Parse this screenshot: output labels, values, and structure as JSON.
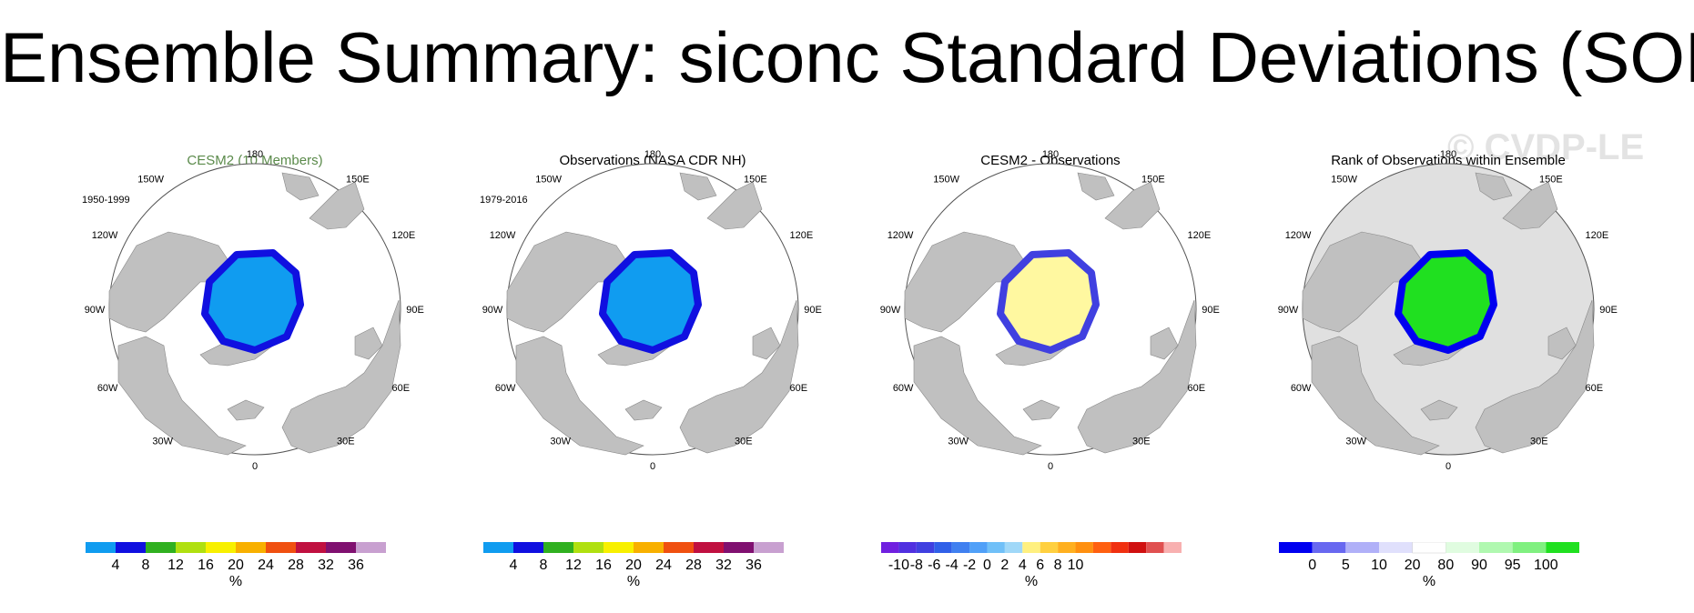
{
  "title": "Ensemble Summary: siconc Standard Deviations (SON)",
  "watermark": "© CVDP-LE",
  "lon_labels": {
    "n": "180",
    "ne1": "150E",
    "ne2": "120E",
    "e": "90E",
    "se1": "60E",
    "se2": "30E",
    "s": "0",
    "sw2": "30W",
    "sw1": "60W",
    "w": "90W",
    "nw2": "120W",
    "nw1": "150W"
  },
  "colors": {
    "land": "#c0c0c0",
    "ocean": "#ffffff",
    "outline": "#555555"
  },
  "panels": [
    {
      "title": "CESM2 (10 Members)",
      "title_color": "#5a8a4a",
      "period": "1950-1999",
      "colorbar": {
        "colors": [
          "#109cf0",
          "#1010e0",
          "#30b020",
          "#b0e010",
          "#f8f000",
          "#f8b000",
          "#f05010",
          "#c01040",
          "#801070",
          "#c8a0d0"
        ],
        "ticks": [
          "4",
          "8",
          "12",
          "16",
          "20",
          "24",
          "28",
          "32",
          "36"
        ],
        "unit": "%"
      }
    },
    {
      "title": "Observations (NASA CDR NH)",
      "title_color": "#000000",
      "period": "1979-2016",
      "colorbar": {
        "colors": [
          "#109cf0",
          "#1010e0",
          "#30b020",
          "#b0e010",
          "#f8f000",
          "#f8b000",
          "#f05010",
          "#c01040",
          "#801070",
          "#c8a0d0"
        ],
        "ticks": [
          "4",
          "8",
          "12",
          "16",
          "20",
          "24",
          "28",
          "32",
          "36"
        ],
        "unit": "%"
      }
    },
    {
      "title": "CESM2 - Observations",
      "title_color": "#000000",
      "period": "",
      "colorbar": {
        "colors": [
          "#7020e0",
          "#5030e0",
          "#4040e0",
          "#3060e8",
          "#4080f0",
          "#50a0f8",
          "#70c0f8",
          "#a0d8f8",
          "#fff080",
          "#ffd040",
          "#ffb020",
          "#ff9010",
          "#ff6010",
          "#f03010",
          "#d01010",
          "#e05050",
          "#f8b0b0"
        ],
        "ticks": [
          "-10",
          "-8",
          "-6",
          "-4",
          "-2",
          "0",
          "2",
          "4",
          "6",
          "8",
          "10"
        ],
        "unit": "%"
      }
    },
    {
      "title": "Rank of Observations within Ensemble",
      "title_color": "#000000",
      "period": "",
      "colorbar": {
        "colors": [
          "#0000f0",
          "#6868f0",
          "#b0b0f8",
          "#e0e0fc",
          "#ffffff",
          "#e0fce0",
          "#b0f8b0",
          "#80f080",
          "#20e020"
        ],
        "ticks": [
          "0",
          "5",
          "10",
          "20",
          "80",
          "90",
          "95",
          "100"
        ],
        "unit": "%"
      }
    }
  ]
}
